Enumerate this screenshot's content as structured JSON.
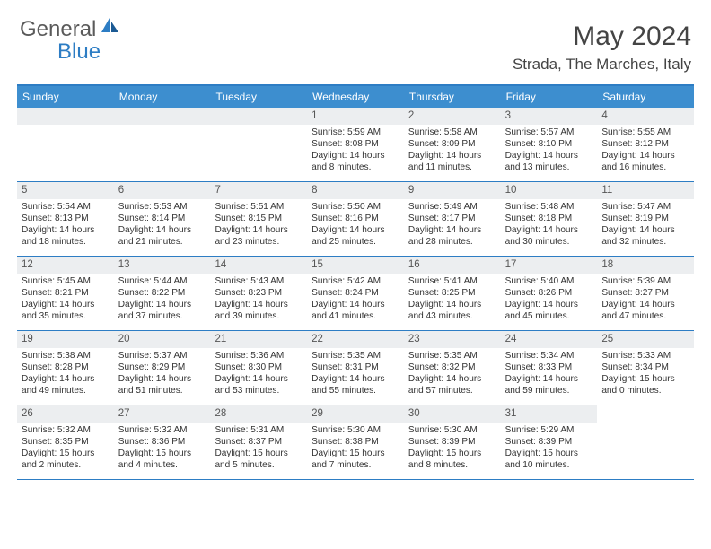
{
  "logo": {
    "text1": "General",
    "text2": "Blue"
  },
  "title": "May 2024",
  "location": "Strada, The Marches, Italy",
  "header_color": "#3d8ecf",
  "border_color": "#2d7dc4",
  "daynum_bg": "#eceef0",
  "weekdays": [
    "Sunday",
    "Monday",
    "Tuesday",
    "Wednesday",
    "Thursday",
    "Friday",
    "Saturday"
  ],
  "weeks": [
    [
      {
        "n": "",
        "sr": "",
        "ss": "",
        "dl": ""
      },
      {
        "n": "",
        "sr": "",
        "ss": "",
        "dl": ""
      },
      {
        "n": "",
        "sr": "",
        "ss": "",
        "dl": ""
      },
      {
        "n": "1",
        "sr": "Sunrise: 5:59 AM",
        "ss": "Sunset: 8:08 PM",
        "dl": "Daylight: 14 hours and 8 minutes."
      },
      {
        "n": "2",
        "sr": "Sunrise: 5:58 AM",
        "ss": "Sunset: 8:09 PM",
        "dl": "Daylight: 14 hours and 11 minutes."
      },
      {
        "n": "3",
        "sr": "Sunrise: 5:57 AM",
        "ss": "Sunset: 8:10 PM",
        "dl": "Daylight: 14 hours and 13 minutes."
      },
      {
        "n": "4",
        "sr": "Sunrise: 5:55 AM",
        "ss": "Sunset: 8:12 PM",
        "dl": "Daylight: 14 hours and 16 minutes."
      }
    ],
    [
      {
        "n": "5",
        "sr": "Sunrise: 5:54 AM",
        "ss": "Sunset: 8:13 PM",
        "dl": "Daylight: 14 hours and 18 minutes."
      },
      {
        "n": "6",
        "sr": "Sunrise: 5:53 AM",
        "ss": "Sunset: 8:14 PM",
        "dl": "Daylight: 14 hours and 21 minutes."
      },
      {
        "n": "7",
        "sr": "Sunrise: 5:51 AM",
        "ss": "Sunset: 8:15 PM",
        "dl": "Daylight: 14 hours and 23 minutes."
      },
      {
        "n": "8",
        "sr": "Sunrise: 5:50 AM",
        "ss": "Sunset: 8:16 PM",
        "dl": "Daylight: 14 hours and 25 minutes."
      },
      {
        "n": "9",
        "sr": "Sunrise: 5:49 AM",
        "ss": "Sunset: 8:17 PM",
        "dl": "Daylight: 14 hours and 28 minutes."
      },
      {
        "n": "10",
        "sr": "Sunrise: 5:48 AM",
        "ss": "Sunset: 8:18 PM",
        "dl": "Daylight: 14 hours and 30 minutes."
      },
      {
        "n": "11",
        "sr": "Sunrise: 5:47 AM",
        "ss": "Sunset: 8:19 PM",
        "dl": "Daylight: 14 hours and 32 minutes."
      }
    ],
    [
      {
        "n": "12",
        "sr": "Sunrise: 5:45 AM",
        "ss": "Sunset: 8:21 PM",
        "dl": "Daylight: 14 hours and 35 minutes."
      },
      {
        "n": "13",
        "sr": "Sunrise: 5:44 AM",
        "ss": "Sunset: 8:22 PM",
        "dl": "Daylight: 14 hours and 37 minutes."
      },
      {
        "n": "14",
        "sr": "Sunrise: 5:43 AM",
        "ss": "Sunset: 8:23 PM",
        "dl": "Daylight: 14 hours and 39 minutes."
      },
      {
        "n": "15",
        "sr": "Sunrise: 5:42 AM",
        "ss": "Sunset: 8:24 PM",
        "dl": "Daylight: 14 hours and 41 minutes."
      },
      {
        "n": "16",
        "sr": "Sunrise: 5:41 AM",
        "ss": "Sunset: 8:25 PM",
        "dl": "Daylight: 14 hours and 43 minutes."
      },
      {
        "n": "17",
        "sr": "Sunrise: 5:40 AM",
        "ss": "Sunset: 8:26 PM",
        "dl": "Daylight: 14 hours and 45 minutes."
      },
      {
        "n": "18",
        "sr": "Sunrise: 5:39 AM",
        "ss": "Sunset: 8:27 PM",
        "dl": "Daylight: 14 hours and 47 minutes."
      }
    ],
    [
      {
        "n": "19",
        "sr": "Sunrise: 5:38 AM",
        "ss": "Sunset: 8:28 PM",
        "dl": "Daylight: 14 hours and 49 minutes."
      },
      {
        "n": "20",
        "sr": "Sunrise: 5:37 AM",
        "ss": "Sunset: 8:29 PM",
        "dl": "Daylight: 14 hours and 51 minutes."
      },
      {
        "n": "21",
        "sr": "Sunrise: 5:36 AM",
        "ss": "Sunset: 8:30 PM",
        "dl": "Daylight: 14 hours and 53 minutes."
      },
      {
        "n": "22",
        "sr": "Sunrise: 5:35 AM",
        "ss": "Sunset: 8:31 PM",
        "dl": "Daylight: 14 hours and 55 minutes."
      },
      {
        "n": "23",
        "sr": "Sunrise: 5:35 AM",
        "ss": "Sunset: 8:32 PM",
        "dl": "Daylight: 14 hours and 57 minutes."
      },
      {
        "n": "24",
        "sr": "Sunrise: 5:34 AM",
        "ss": "Sunset: 8:33 PM",
        "dl": "Daylight: 14 hours and 59 minutes."
      },
      {
        "n": "25",
        "sr": "Sunrise: 5:33 AM",
        "ss": "Sunset: 8:34 PM",
        "dl": "Daylight: 15 hours and 0 minutes."
      }
    ],
    [
      {
        "n": "26",
        "sr": "Sunrise: 5:32 AM",
        "ss": "Sunset: 8:35 PM",
        "dl": "Daylight: 15 hours and 2 minutes."
      },
      {
        "n": "27",
        "sr": "Sunrise: 5:32 AM",
        "ss": "Sunset: 8:36 PM",
        "dl": "Daylight: 15 hours and 4 minutes."
      },
      {
        "n": "28",
        "sr": "Sunrise: 5:31 AM",
        "ss": "Sunset: 8:37 PM",
        "dl": "Daylight: 15 hours and 5 minutes."
      },
      {
        "n": "29",
        "sr": "Sunrise: 5:30 AM",
        "ss": "Sunset: 8:38 PM",
        "dl": "Daylight: 15 hours and 7 minutes."
      },
      {
        "n": "30",
        "sr": "Sunrise: 5:30 AM",
        "ss": "Sunset: 8:39 PM",
        "dl": "Daylight: 15 hours and 8 minutes."
      },
      {
        "n": "31",
        "sr": "Sunrise: 5:29 AM",
        "ss": "Sunset: 8:39 PM",
        "dl": "Daylight: 15 hours and 10 minutes."
      },
      {
        "n": "",
        "sr": "",
        "ss": "",
        "dl": ""
      }
    ]
  ]
}
